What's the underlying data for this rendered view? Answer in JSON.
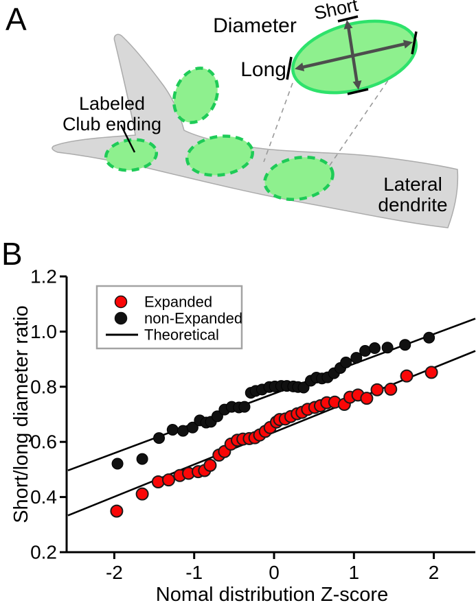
{
  "figure": {
    "panel_a": {
      "label": "A",
      "diameter_label": "Diameter",
      "short_label": "Short",
      "long_label": "Long",
      "club_ending_label": [
        "Labeled",
        "Club ending"
      ],
      "dendrite_label": [
        "Lateral",
        "dendrite"
      ],
      "colors": {
        "ending_fill": "#8ef08e",
        "ending_stroke": "#1ecb57",
        "dendrite_fill": "#d8d8d8",
        "arrow": "#4d4d4d"
      }
    },
    "panel_b": {
      "label": "B"
    }
  },
  "chart_data": {
    "type": "scatter",
    "title": "",
    "xlabel": "Nomal distribution Z-score",
    "ylabel": "Short/long diameter ratio",
    "xlim": [
      -2.6,
      2.53
    ],
    "ylim": [
      0.2,
      1.2
    ],
    "grid": false,
    "legend_position": "top-left",
    "x_ticks": {
      "values": [
        -2,
        -1,
        0,
        1,
        2
      ],
      "labels": [
        "-2",
        "-1",
        "0",
        "1",
        "2"
      ]
    },
    "y_ticks": {
      "values": [
        0.2,
        0.4,
        0.6,
        0.8,
        1.0,
        1.2
      ],
      "labels": [
        "0.2",
        "0.4",
        "0.6",
        "0.8",
        "1.0",
        "1.2"
      ]
    },
    "legend": {
      "border_color": "#a3a3a3",
      "items": [
        {
          "label": "Expanded",
          "swatch": "dot",
          "color": "#fa0707",
          "label_color": "#c0232a"
        },
        {
          "label": "non-Expanded",
          "swatch": "dot",
          "color": "#111111",
          "label_color": "#111111"
        },
        {
          "label": "Theoretical",
          "swatch": "line",
          "color": "#000000",
          "label_color": "#111111"
        }
      ]
    },
    "series": [
      {
        "name": "non-Expanded",
        "marker": "circle",
        "color": "#111111",
        "edge_color": "#000000",
        "radius": 8,
        "points": [
          [
            -1.96,
            0.521
          ],
          [
            -1.65,
            0.538
          ],
          [
            -1.44,
            0.614
          ],
          [
            -1.27,
            0.644
          ],
          [
            -1.14,
            0.64
          ],
          [
            -1.02,
            0.652
          ],
          [
            -0.93,
            0.678
          ],
          [
            -0.85,
            0.67
          ],
          [
            -0.79,
            0.673
          ],
          [
            -0.71,
            0.693
          ],
          [
            -0.62,
            0.717
          ],
          [
            -0.53,
            0.727
          ],
          [
            -0.44,
            0.725
          ],
          [
            -0.37,
            0.727
          ],
          [
            -0.29,
            0.778
          ],
          [
            -0.23,
            0.785
          ],
          [
            -0.15,
            0.79
          ],
          [
            -0.06,
            0.799
          ],
          [
            0.01,
            0.801
          ],
          [
            0.09,
            0.803
          ],
          [
            0.16,
            0.803
          ],
          [
            0.24,
            0.801
          ],
          [
            0.3,
            0.799
          ],
          [
            0.37,
            0.797
          ],
          [
            0.46,
            0.822
          ],
          [
            0.53,
            0.833
          ],
          [
            0.6,
            0.83
          ],
          [
            0.67,
            0.834
          ],
          [
            0.75,
            0.849
          ],
          [
            0.83,
            0.868
          ],
          [
            0.9,
            0.888
          ],
          [
            1.03,
            0.905
          ],
          [
            1.14,
            0.93
          ],
          [
            1.26,
            0.94
          ],
          [
            1.42,
            0.942
          ],
          [
            1.64,
            0.952
          ],
          [
            1.94,
            0.978
          ]
        ]
      },
      {
        "name": "Expanded",
        "marker": "circle",
        "color": "#fa0707",
        "edge_color": "#1a1a1a",
        "radius": 8.5,
        "points": [
          [
            -1.97,
            0.349
          ],
          [
            -1.65,
            0.411
          ],
          [
            -1.45,
            0.455
          ],
          [
            -1.32,
            0.462
          ],
          [
            -1.18,
            0.478
          ],
          [
            -1.07,
            0.486
          ],
          [
            -0.95,
            0.492
          ],
          [
            -0.87,
            0.496
          ],
          [
            -0.8,
            0.515
          ],
          [
            -0.69,
            0.552
          ],
          [
            -0.62,
            0.565
          ],
          [
            -0.54,
            0.592
          ],
          [
            -0.46,
            0.606
          ],
          [
            -0.39,
            0.61
          ],
          [
            -0.31,
            0.612
          ],
          [
            -0.24,
            0.615
          ],
          [
            -0.18,
            0.625
          ],
          [
            -0.11,
            0.638
          ],
          [
            -0.05,
            0.652
          ],
          [
            0.03,
            0.672
          ],
          [
            0.07,
            0.681
          ],
          [
            0.14,
            0.683
          ],
          [
            0.21,
            0.692
          ],
          [
            0.29,
            0.702
          ],
          [
            0.35,
            0.707
          ],
          [
            0.42,
            0.718
          ],
          [
            0.51,
            0.725
          ],
          [
            0.58,
            0.731
          ],
          [
            0.66,
            0.742
          ],
          [
            0.76,
            0.744
          ],
          [
            0.88,
            0.736
          ],
          [
            0.95,
            0.762
          ],
          [
            1.05,
            0.77
          ],
          [
            1.16,
            0.758
          ],
          [
            1.29,
            0.789
          ],
          [
            1.46,
            0.791
          ],
          [
            1.66,
            0.839
          ],
          [
            1.97,
            0.852
          ]
        ]
      }
    ],
    "theoretical_lines": [
      {
        "series": "non-Expanded",
        "intercept": 0.775,
        "slope": 0.108
      },
      {
        "series": "Expanded",
        "intercept": 0.635,
        "slope": 0.117
      }
    ]
  }
}
